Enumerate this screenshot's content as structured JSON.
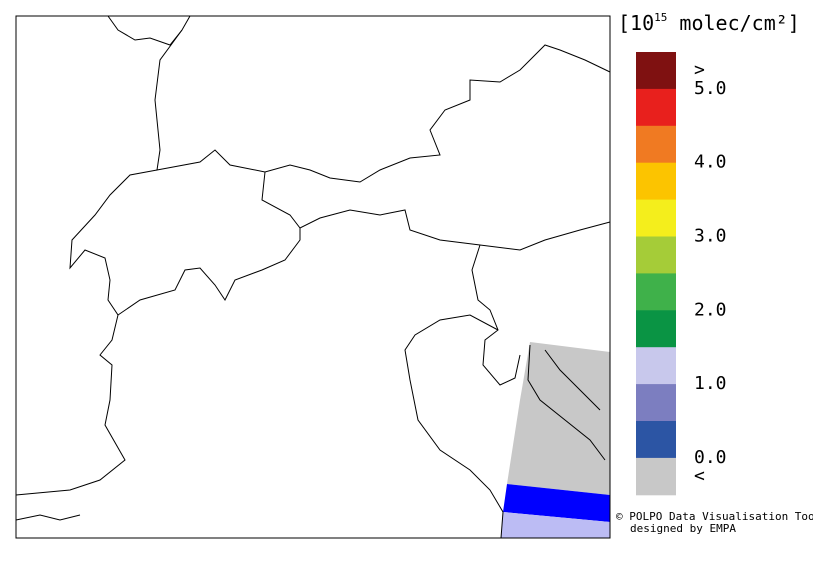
{
  "legend": {
    "unit": {
      "open": "[10",
      "exponent": "15",
      "rest": " molec/cm²]"
    },
    "colors": [
      "#7f1111",
      "#e8201d",
      "#f07a22",
      "#fcc400",
      "#f4ee1c",
      "#a5cc38",
      "#3fb14a",
      "#0a9444",
      "#c8c8ec",
      "#7c7ec0",
      "#2c55a4",
      "#c8c8c8"
    ],
    "above_label": ">",
    "below_label": "<",
    "ticks": [
      {
        "value": 5,
        "label": "5.0"
      },
      {
        "value": 4,
        "label": "4.0"
      },
      {
        "value": 3,
        "label": "3.0"
      },
      {
        "value": 2,
        "label": "2.0"
      },
      {
        "value": 1,
        "label": "1.0"
      },
      {
        "value": 0,
        "label": "0.0"
      }
    ]
  },
  "credits": {
    "line1": "© POLPO Data Visualisation Tool",
    "line2": "designed by EMPA"
  }
}
